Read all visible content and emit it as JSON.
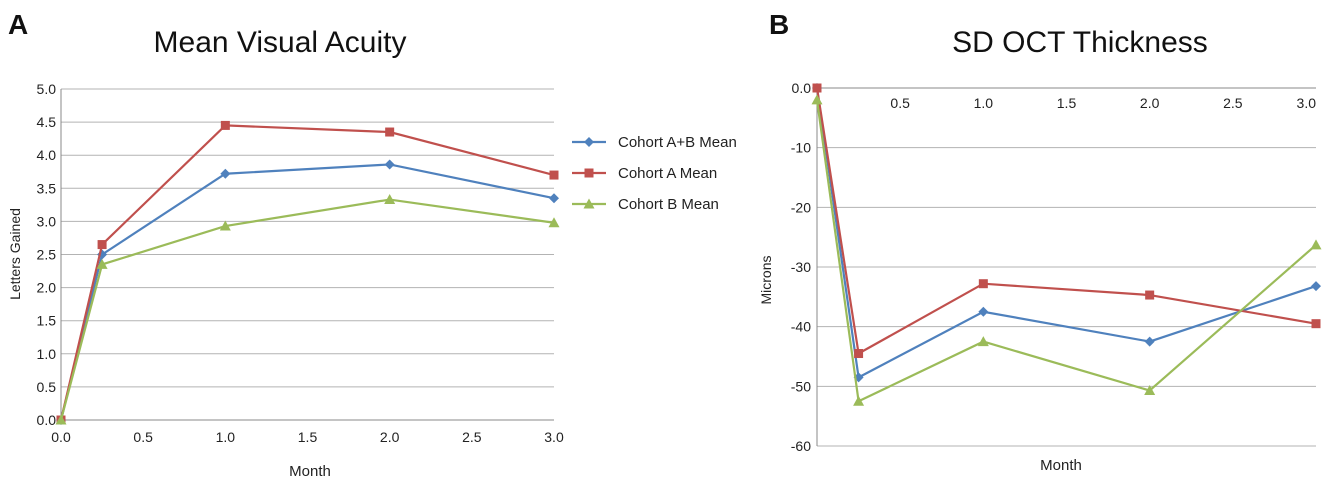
{
  "chart_data": [
    {
      "panel": "A",
      "type": "line",
      "title": "Mean Visual Acuity",
      "xlabel": "Month",
      "ylabel": "Letters Gained",
      "xlim": [
        0,
        3
      ],
      "ylim": [
        0,
        5
      ],
      "x_ticks": [
        "0.0",
        "0.5",
        "1.0",
        "1.5",
        "2.0",
        "2.5",
        "3.0"
      ],
      "y_ticks": [
        "0.0",
        "0.5",
        "1.0",
        "1.5",
        "2.0",
        "2.5",
        "3.0",
        "3.5",
        "4.0",
        "4.5",
        "5.0"
      ],
      "grid": true,
      "legend": "right",
      "x": [
        0,
        0.25,
        1,
        2,
        3
      ],
      "series": [
        {
          "name": "Cohort A+B Mean",
          "color": "#4f81bd",
          "marker": "diamond",
          "values": [
            0,
            2.5,
            3.72,
            3.86,
            3.35
          ]
        },
        {
          "name": "Cohort A Mean",
          "color": "#c0504d",
          "marker": "square",
          "values": [
            0,
            2.65,
            4.45,
            4.35,
            3.7
          ]
        },
        {
          "name": "Cohort B Mean",
          "color": "#9bbb59",
          "marker": "triangle",
          "values": [
            0,
            2.35,
            2.93,
            3.33,
            2.98
          ]
        }
      ]
    },
    {
      "panel": "B",
      "type": "line",
      "title": "SD OCT Thickness",
      "xlabel": "Month",
      "ylabel": "Microns",
      "xlim": [
        0,
        3
      ],
      "ylim": [
        -60,
        0
      ],
      "x_ticks": [
        "0.5",
        "1.0",
        "1.5",
        "2.0",
        "2.5",
        "3.0"
      ],
      "y_ticks": [
        "0.0",
        "-10",
        "-20",
        "-30",
        "-40",
        "-50",
        "-60"
      ],
      "grid": true,
      "x": [
        0,
        0.25,
        1,
        2,
        3
      ],
      "series": [
        {
          "name": "Cohort A+B Mean",
          "color": "#4f81bd",
          "marker": "diamond",
          "values": [
            0,
            -48.5,
            -37.5,
            -42.5,
            -33.2
          ]
        },
        {
          "name": "Cohort A Mean",
          "color": "#c0504d",
          "marker": "square",
          "values": [
            0,
            -44.5,
            -32.8,
            -34.7,
            -39.5
          ]
        },
        {
          "name": "Cohort B Mean",
          "color": "#9bbb59",
          "marker": "triangle",
          "values": [
            -2,
            -52.5,
            -42.5,
            -50.7,
            -26.3
          ]
        }
      ]
    }
  ]
}
